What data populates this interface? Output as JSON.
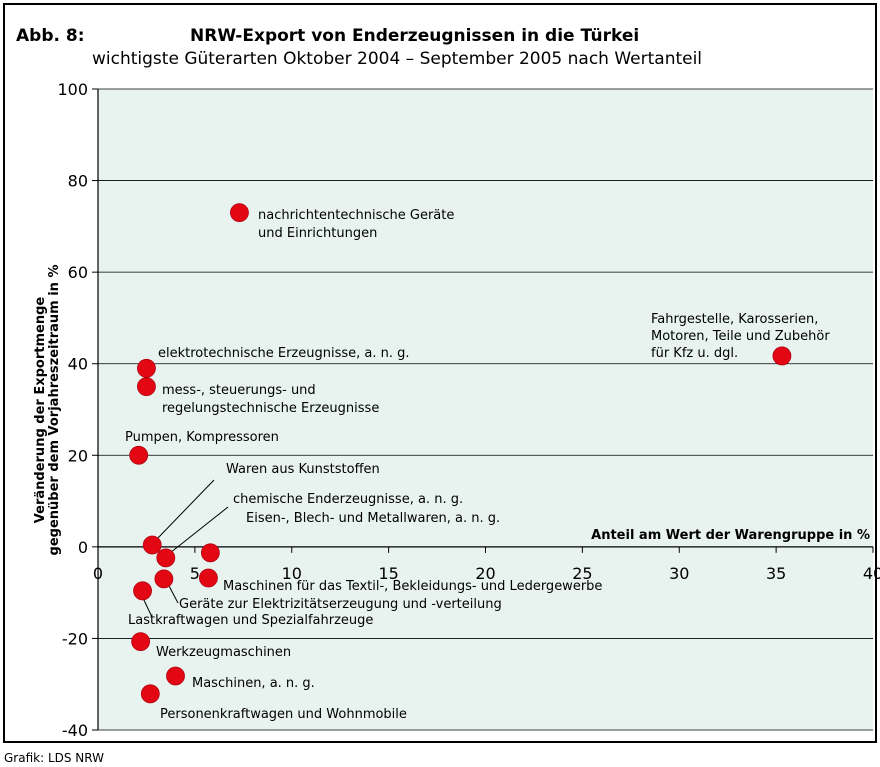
{
  "chart_data": {
    "type": "scatter",
    "figure_label": "Abb. 8:",
    "title": "NRW-Export von Enderzeugnissen in die Türkei",
    "subtitle": "wichtigste Güterarten Oktober 2004 – September 2005 nach Wertanteil",
    "x_label": "Anteil am Wert der Warengruppe in %",
    "y_label": [
      "Veränderung der Exportmenge",
      "gegenüber dem Vorjahreszeitraum in %"
    ],
    "source": "Grafik: LDS NRW",
    "color": "#e30613",
    "background": "#e8f3ef",
    "grid": true,
    "xlim": [
      0,
      40
    ],
    "xticks": [
      0,
      5,
      10,
      15,
      20,
      25,
      30,
      35,
      40
    ],
    "ylim": [
      -40,
      100
    ],
    "yticks": [
      -40,
      -20,
      0,
      20,
      40,
      60,
      80,
      100
    ],
    "point_labels": [
      [
        "nachrichtentechnische Geräte",
        "und Einrichtungen"
      ],
      [
        "Fahrgestelle, Karosserien,",
        "Motoren, Teile und Zubehör",
        "für Kfz u. dgl."
      ],
      [
        "elektrotechnische Erzeugnisse, a. n. g."
      ],
      [
        "mess-, steuerungs- und",
        "regelungstechnische Erzeugnisse"
      ],
      [
        "Pumpen, Kompressoren"
      ],
      [
        "Waren aus Kunststoffen"
      ],
      [
        "chemische Enderzeugnisse, a. n. g."
      ],
      [
        "Eisen-, Blech- und Metallwaren, a. n. g."
      ],
      [
        "Maschinen für das Textil-, Bekleidungs- und Ledergewerbe"
      ],
      [
        "Geräte zur Elektrizitätserzeugung und -verteilung"
      ],
      [
        "Lastkraftwagen und Spezialfahrzeuge"
      ],
      [
        "Werkzeugmaschinen"
      ],
      [
        "Maschinen, a. n. g."
      ],
      [
        "Personenkraftwagen und Wohnmobile"
      ]
    ],
    "x": [
      7.3,
      35.3,
      2.5,
      2.5,
      2.1,
      2.8,
      3.5,
      5.8,
      5.7,
      3.4,
      2.3,
      2.2,
      4.0,
      2.7
    ],
    "values": [
      73,
      41.7,
      39,
      35,
      20,
      0.4,
      -2.4,
      -1.3,
      -6.8,
      -7,
      -9.6,
      -20.7,
      -28.2,
      -32.1
    ]
  }
}
